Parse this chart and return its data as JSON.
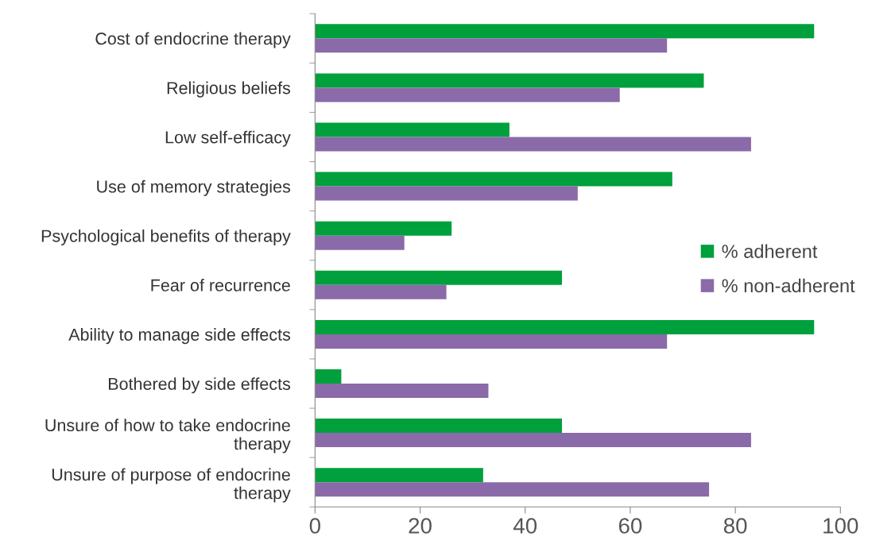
{
  "chart_data": {
    "type": "bar",
    "orientation": "horizontal",
    "categories": [
      "Cost of endocrine therapy",
      "Religious beliefs",
      "Low self-efficacy",
      "Use of memory strategies",
      "Psychological benefits of therapy",
      "Fear of recurrence",
      "Ability to manage side effects",
      "Bothered by side effects",
      "Unsure of how to take endocrine therapy",
      "Unsure of purpose of endocrine therapy"
    ],
    "series": [
      {
        "name": "% adherent",
        "color": "#00a03c",
        "values": [
          95,
          74,
          37,
          68,
          26,
          47,
          95,
          5,
          47,
          32
        ]
      },
      {
        "name": "% non-adherent",
        "color": "#8a6aa8",
        "values": [
          67,
          58,
          83,
          50,
          17,
          25,
          67,
          33,
          83,
          75
        ]
      }
    ],
    "xlim": [
      0,
      100
    ],
    "xticks": [
      0,
      20,
      40,
      60,
      80,
      100
    ],
    "grid": false,
    "legend": "right"
  }
}
